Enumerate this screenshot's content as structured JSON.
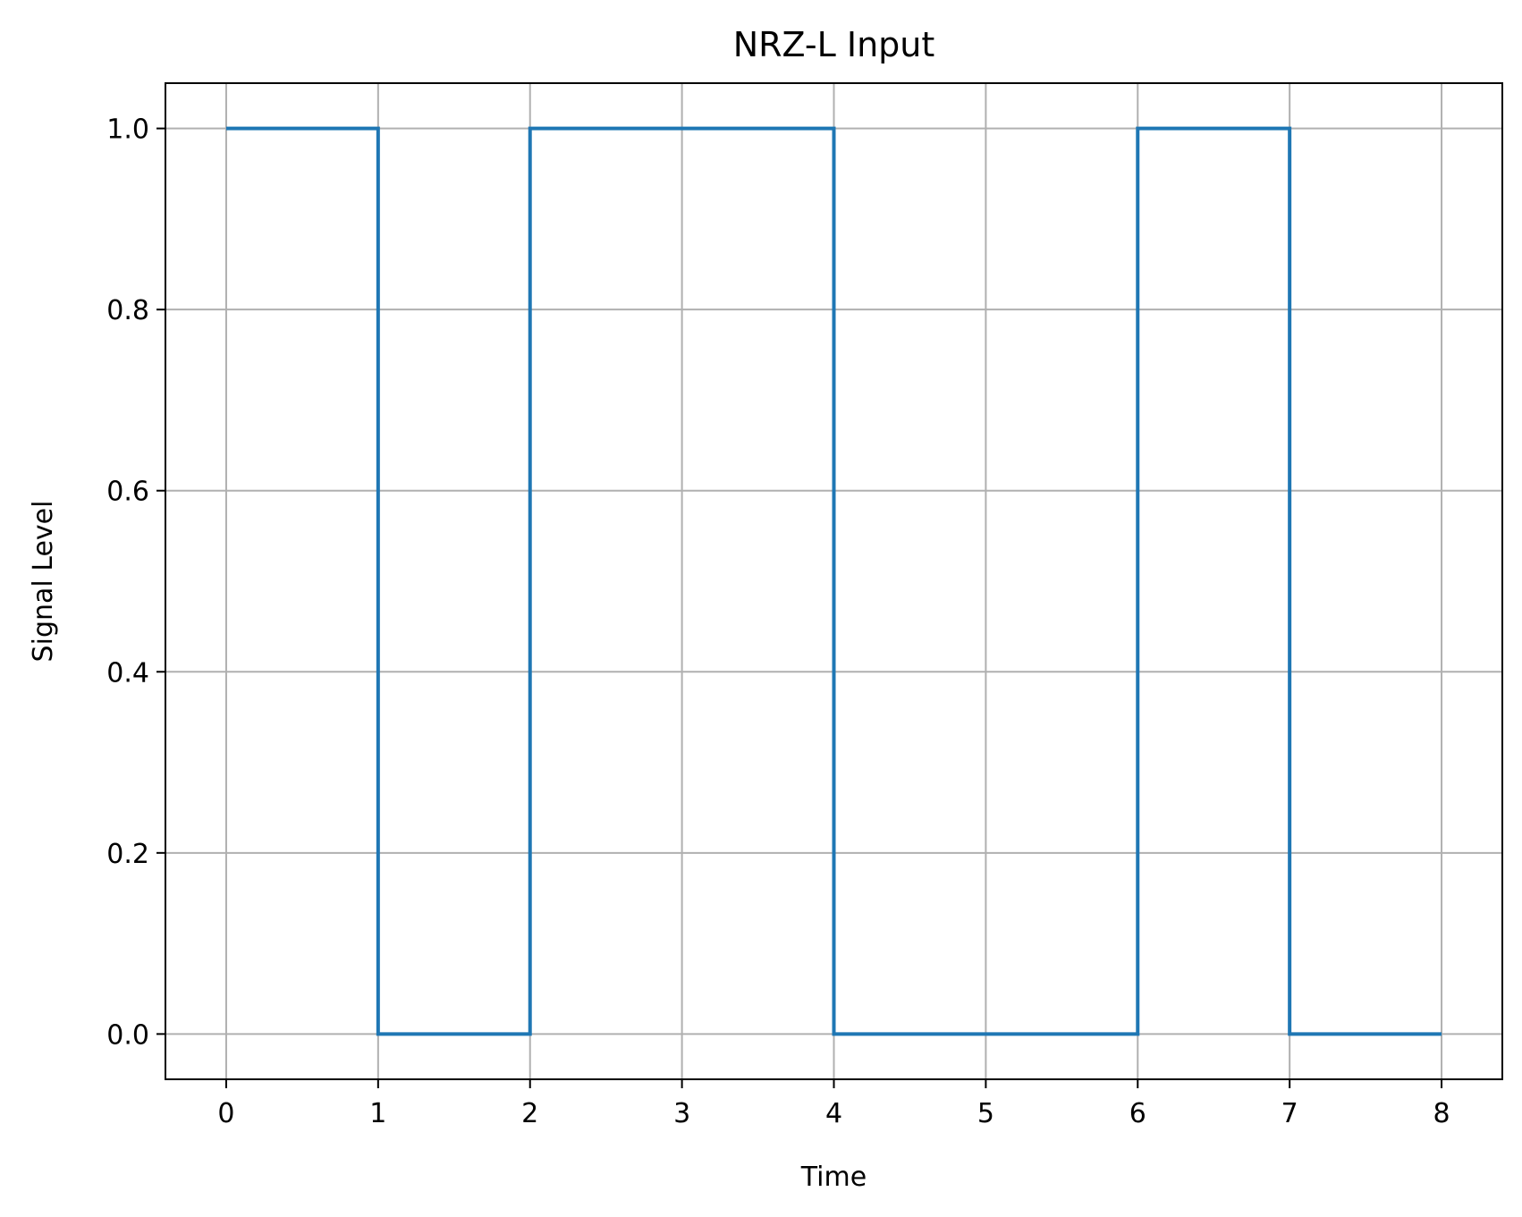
{
  "chart_data": {
    "type": "line",
    "drawstyle": "step-post",
    "title": "NRZ-L Input",
    "xlabel": "Time",
    "ylabel": "Signal Level",
    "x": [
      0,
      1,
      2,
      3,
      4,
      5,
      6,
      7,
      8
    ],
    "series": [
      {
        "name": "NRZ-L",
        "color": "#1f77b4",
        "values": [
          1,
          0,
          1,
          1,
          0,
          0,
          1,
          0,
          0
        ]
      }
    ],
    "xlim": [
      -0.4,
      8.4
    ],
    "ylim": [
      -0.05,
      1.05
    ],
    "xticks": [
      0,
      1,
      2,
      3,
      4,
      5,
      6,
      7,
      8
    ],
    "xtick_labels": [
      "0",
      "1",
      "2",
      "3",
      "4",
      "5",
      "6",
      "7",
      "8"
    ],
    "yticks": [
      0.0,
      0.2,
      0.4,
      0.6,
      0.8,
      1.0
    ],
    "ytick_labels": [
      "0.0",
      "0.2",
      "0.4",
      "0.6",
      "0.8",
      "1.0"
    ],
    "grid": true,
    "grid_color": "#b0b0b0",
    "axis_color": "#000000"
  }
}
